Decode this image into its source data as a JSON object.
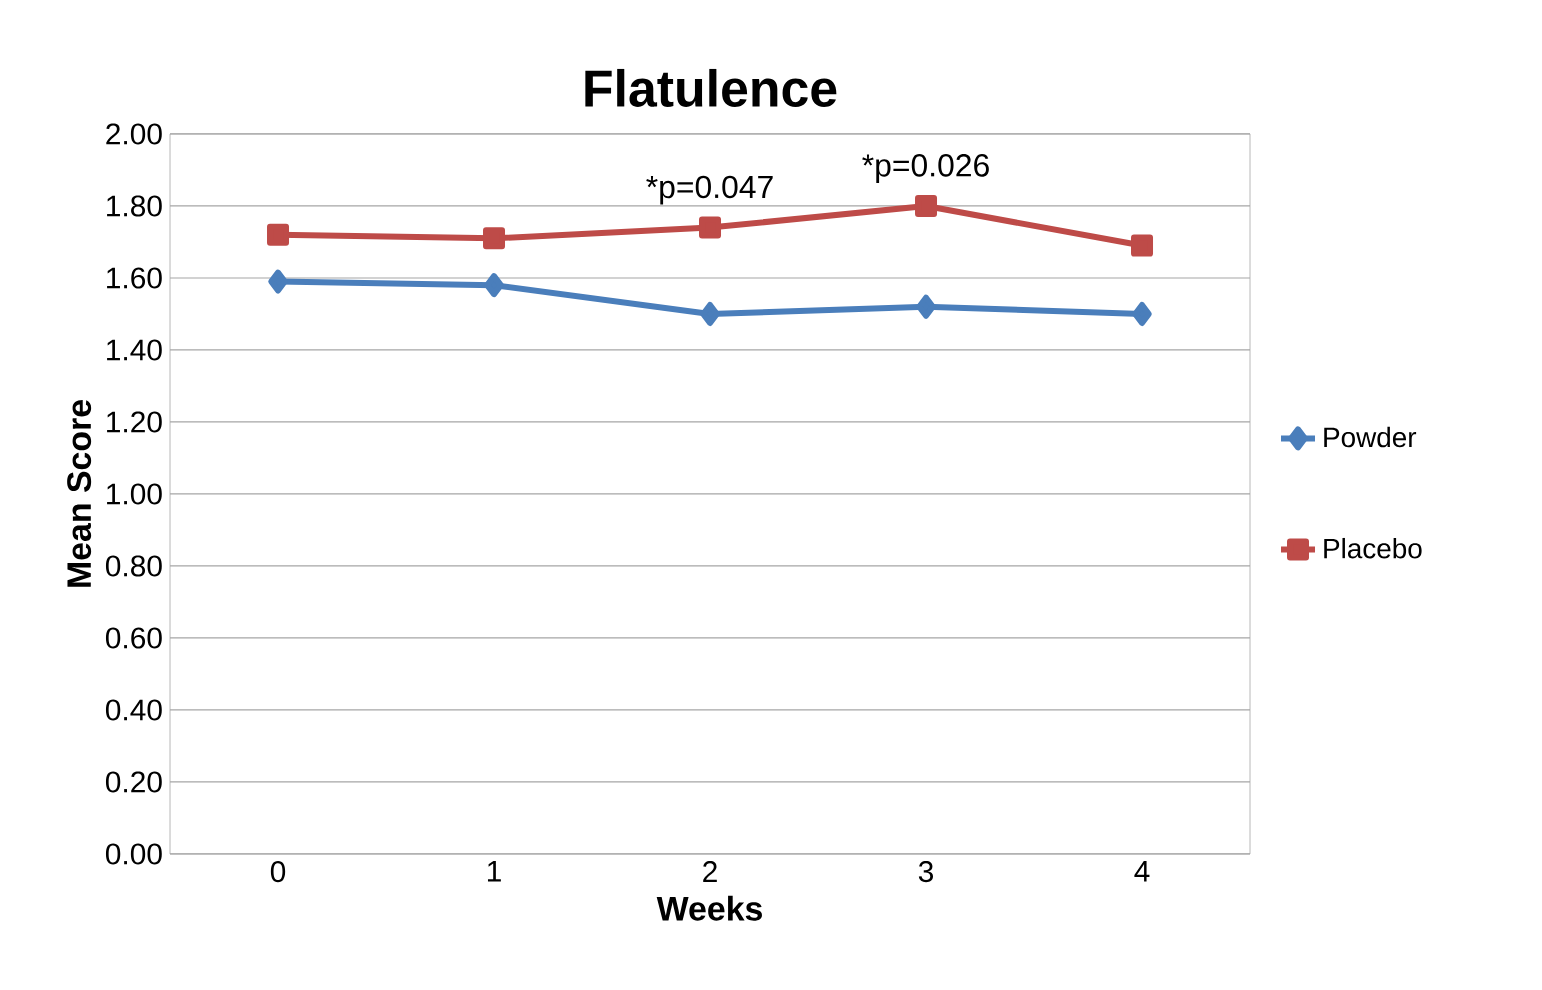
{
  "chart_data": {
    "type": "line",
    "title": "Flatulence",
    "xlabel": "Weeks",
    "ylabel": "Mean Score",
    "categories": [
      "0",
      "1",
      "2",
      "3",
      "4"
    ],
    "series": [
      {
        "name": "Powder",
        "color": "#4a7ebb",
        "marker": "diamond",
        "values": [
          1.59,
          1.58,
          1.5,
          1.52,
          1.5
        ]
      },
      {
        "name": "Placebo",
        "color": "#be4b48",
        "marker": "square",
        "values": [
          1.72,
          1.71,
          1.74,
          1.8,
          1.69
        ]
      }
    ],
    "ylim": [
      0,
      2
    ],
    "yticks": [
      {
        "value": 0,
        "label": "0.00"
      },
      {
        "value": 0.2,
        "label": "0.20"
      },
      {
        "value": 0.4,
        "label": "0.40"
      },
      {
        "value": 0.6,
        "label": "0.60"
      },
      {
        "value": 0.8,
        "label": "0.80"
      },
      {
        "value": 1.0,
        "label": "1.00"
      },
      {
        "value": 1.2,
        "label": "1.20"
      },
      {
        "value": 1.4,
        "label": "1.40"
      },
      {
        "value": 1.6,
        "label": "1.60"
      },
      {
        "value": 1.8,
        "label": "1.80"
      },
      {
        "value": 2.0,
        "label": "2.00"
      }
    ],
    "annotations": [
      {
        "text": "*p=0.047",
        "x": "2",
        "y": 1.74
      },
      {
        "text": "*p=0.026",
        "x": "3",
        "y": 1.8
      }
    ],
    "grid": "y",
    "legend": "right"
  }
}
